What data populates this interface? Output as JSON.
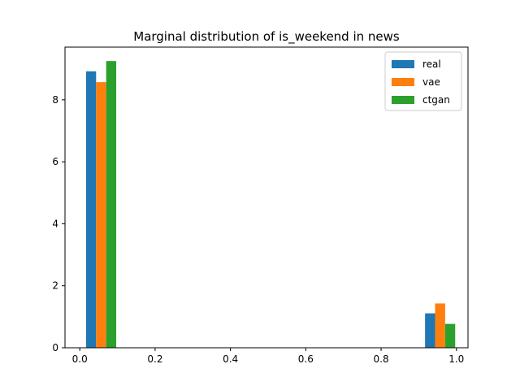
{
  "chart_data": {
    "type": "bar",
    "title": "Marginal distribution of is_weekend in news",
    "xlabel": "",
    "ylabel": "",
    "xlim": [
      -0.0393,
      1.0307
    ],
    "ylim": [
      0,
      9.7
    ],
    "xticks": [
      0.0,
      0.2,
      0.4,
      0.6,
      0.8,
      1.0
    ],
    "xtick_labels": [
      "0.0",
      "0.2",
      "0.4",
      "0.6",
      "0.8",
      "1.0"
    ],
    "yticks": [
      0,
      2,
      4,
      6,
      8
    ],
    "ytick_labels": [
      "0",
      "2",
      "4",
      "6",
      "8"
    ],
    "grid": false,
    "legend_position": "top-right",
    "bin_edges": [
      0.0,
      0.1,
      0.9,
      1.0
    ],
    "bars": [
      {
        "series": "real",
        "x_left": 0.0167,
        "x_right": 0.0433,
        "value": 8.92
      },
      {
        "series": "vae",
        "x_left": 0.0433,
        "x_right": 0.07,
        "value": 8.57
      },
      {
        "series": "ctgan",
        "x_left": 0.07,
        "x_right": 0.0967,
        "value": 9.25
      },
      {
        "series": "real",
        "x_left": 0.9167,
        "x_right": 0.9433,
        "value": 1.11
      },
      {
        "series": "vae",
        "x_left": 0.9433,
        "x_right": 0.97,
        "value": 1.43
      },
      {
        "series": "ctgan",
        "x_left": 0.97,
        "x_right": 0.9967,
        "value": 0.77
      }
    ],
    "series": [
      {
        "name": "real",
        "color": "#1f77b4"
      },
      {
        "name": "vae",
        "color": "#ff7f0e"
      },
      {
        "name": "ctgan",
        "color": "#2ca02c"
      }
    ]
  }
}
